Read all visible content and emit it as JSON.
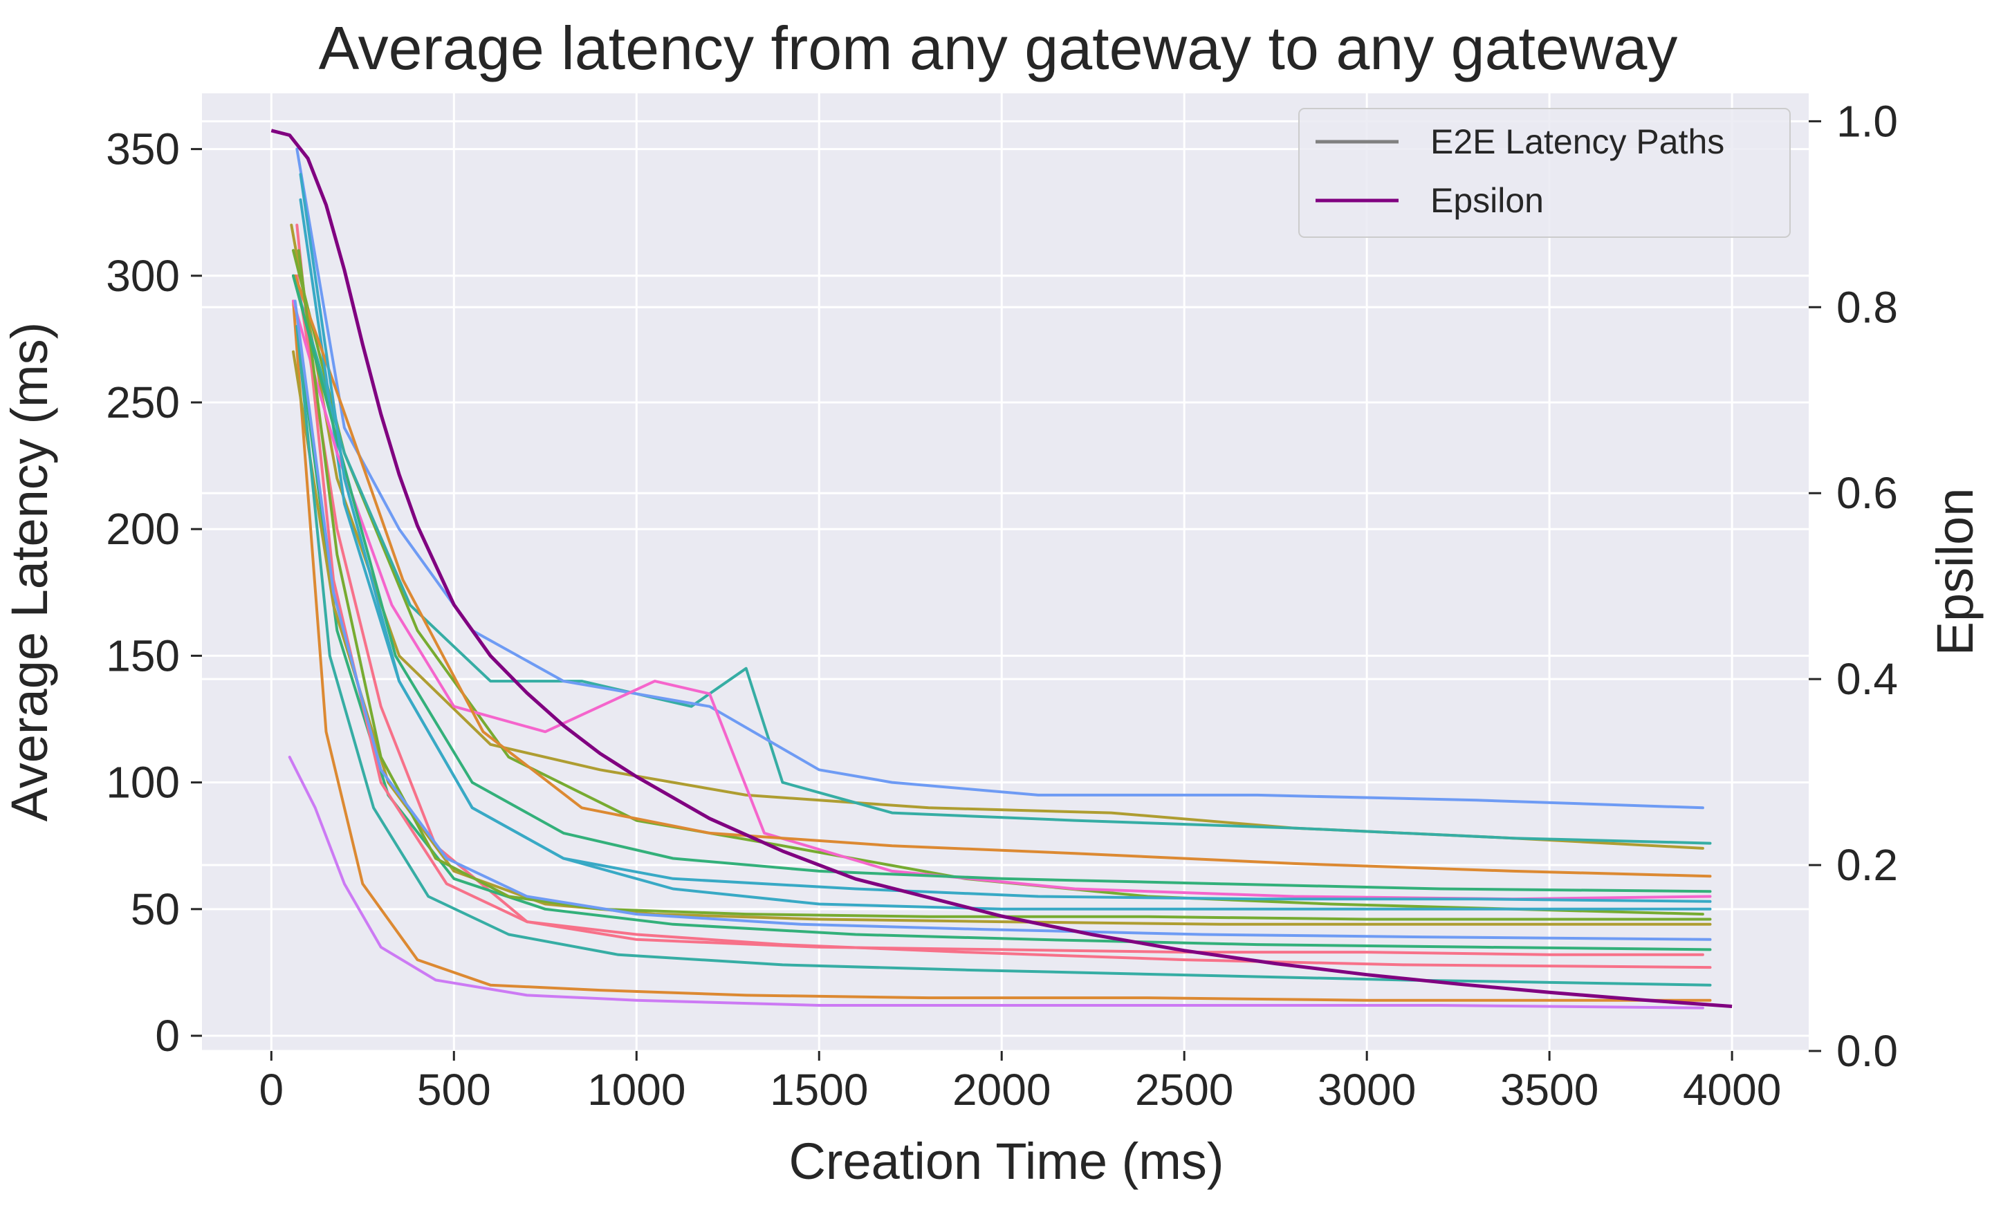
{
  "chart_data": {
    "type": "line",
    "title": "Average latency from any gateway to any gateway",
    "xlabel": "Creation Time (ms)",
    "ylabel": "Average Latency (ms)",
    "y2label": "Epsilon",
    "xlim": [
      -190,
      4210
    ],
    "ylim": [
      -6,
      372
    ],
    "y2lim": [
      0.0,
      1.03
    ],
    "x_ticks": [
      0,
      500,
      1000,
      1500,
      2000,
      2500,
      3000,
      3500,
      4000
    ],
    "y_ticks": [
      0,
      50,
      100,
      150,
      200,
      250,
      300,
      350
    ],
    "y2_ticks": [
      0.0,
      0.2,
      0.4,
      0.6,
      0.8,
      1.0
    ],
    "x_tick_labels": [
      "0",
      "500",
      "1000",
      "1500",
      "2000",
      "2500",
      "3000",
      "3500",
      "4000"
    ],
    "y_tick_labels": [
      "0",
      "50",
      "100",
      "150",
      "200",
      "250",
      "300",
      "350"
    ],
    "y2_tick_labels": [
      "0.0",
      "0.2",
      "0.4",
      "0.6",
      "0.8",
      "1.0"
    ],
    "grid": true,
    "legend": {
      "placement": "top-right",
      "entries": [
        {
          "label": "E2E Latency Paths",
          "color": "#808080"
        },
        {
          "label": "Epsilon",
          "color": "#800080"
        }
      ]
    },
    "colors": {
      "background": "#eaeaf2",
      "grid": "#ffffff",
      "epsilon": "#800080",
      "palette": [
        "#f77189",
        "#dc8932",
        "#ae9d31",
        "#77ab31",
        "#33b07a",
        "#36ada4",
        "#38a9c5",
        "#6e9bf4",
        "#cc7af4",
        "#f565cc"
      ]
    },
    "series": [
      {
        "x": [
          70,
          180,
          300,
          450,
          700,
          1000,
          1500,
          2000,
          2500,
          3000,
          3500,
          3920
        ],
        "values": [
          300,
          200,
          130,
          75,
          45,
          38,
          35,
          34,
          33,
          33,
          32,
          32
        ]
      },
      {
        "x": [
          60,
          150,
          250,
          400,
          600,
          900,
          1300,
          1800,
          2400,
          3000,
          3500,
          3940
        ],
        "values": [
          290,
          120,
          60,
          30,
          20,
          18,
          16,
          15,
          15,
          14,
          14,
          14
        ]
      },
      {
        "x": [
          55,
          180,
          350,
          600,
          900,
          1300,
          1800,
          2300,
          2800,
          3400,
          3920
        ],
        "values": [
          320,
          220,
          150,
          115,
          105,
          95,
          90,
          88,
          82,
          78,
          74
        ]
      },
      {
        "x": [
          60,
          200,
          400,
          650,
          1000,
          1400,
          1900,
          2400,
          2900,
          3400,
          3920
        ],
        "values": [
          310,
          230,
          160,
          110,
          85,
          75,
          62,
          55,
          52,
          50,
          48
        ]
      },
      {
        "x": [
          70,
          180,
          320,
          500,
          750,
          1100,
          1600,
          2100,
          2700,
          3300,
          3940
        ],
        "values": [
          280,
          160,
          95,
          62,
          50,
          44,
          40,
          38,
          36,
          35,
          34
        ]
      },
      {
        "x": [
          60,
          200,
          380,
          600,
          850,
          1150,
          1300,
          1400,
          1700,
          2200,
          2800,
          3400,
          3940
        ],
        "values": [
          300,
          230,
          170,
          140,
          140,
          130,
          145,
          100,
          88,
          85,
          82,
          78,
          76
        ]
      },
      {
        "x": [
          80,
          200,
          350,
          550,
          800,
          1100,
          1500,
          2000,
          2600,
          3200,
          3940
        ],
        "values": [
          330,
          210,
          140,
          90,
          70,
          58,
          52,
          50,
          50,
          50,
          50
        ]
      },
      {
        "x": [
          70,
          200,
          350,
          550,
          800,
          1200,
          1500,
          1700,
          2100,
          2700,
          3300,
          3920
        ],
        "values": [
          350,
          240,
          200,
          160,
          140,
          130,
          105,
          100,
          95,
          95,
          93,
          90
        ]
      },
      {
        "x": [
          50,
          120,
          200,
          300,
          450,
          700,
          1000,
          1500,
          2000,
          2600,
          3200,
          3920
        ],
        "values": [
          110,
          90,
          60,
          35,
          22,
          16,
          14,
          12,
          12,
          12,
          12,
          11
        ]
      },
      {
        "x": [
          60,
          180,
          330,
          500,
          750,
          1050,
          1200,
          1350,
          1700,
          2200,
          2800,
          3400,
          3940
        ],
        "values": [
          290,
          230,
          170,
          130,
          120,
          140,
          135,
          80,
          65,
          58,
          55,
          54,
          55
        ]
      },
      {
        "x": [
          70,
          170,
          300,
          480,
          700,
          1000,
          1400,
          1900,
          2500,
          3100,
          3940
        ],
        "values": [
          320,
          180,
          100,
          60,
          45,
          40,
          36,
          33,
          30,
          28,
          27
        ]
      },
      {
        "x": [
          65,
          190,
          360,
          580,
          850,
          1200,
          1700,
          2200,
          2800,
          3400,
          3940
        ],
        "values": [
          300,
          250,
          180,
          120,
          90,
          80,
          75,
          72,
          68,
          65,
          63
        ]
      },
      {
        "x": [
          60,
          170,
          320,
          500,
          750,
          1050,
          1500,
          2000,
          2600,
          3200,
          3940
        ],
        "values": [
          270,
          170,
          100,
          65,
          52,
          48,
          46,
          45,
          44,
          44,
          44
        ]
      },
      {
        "x": [
          75,
          180,
          300,
          450,
          650,
          900,
          1300,
          1800,
          2400,
          3000,
          3940
        ],
        "values": [
          310,
          190,
          110,
          70,
          55,
          50,
          48,
          47,
          47,
          46,
          46
        ]
      },
      {
        "x": [
          60,
          190,
          340,
          550,
          800,
          1100,
          1500,
          2000,
          2600,
          3200,
          3940
        ],
        "values": [
          300,
          230,
          150,
          100,
          80,
          70,
          65,
          62,
          60,
          58,
          57
        ]
      },
      {
        "x": [
          70,
          160,
          280,
          430,
          650,
          950,
          1400,
          1900,
          2500,
          3100,
          3940
        ],
        "values": [
          280,
          150,
          90,
          55,
          40,
          32,
          28,
          26,
          24,
          22,
          20
        ]
      },
      {
        "x": [
          80,
          200,
          350,
          550,
          800,
          1100,
          1600,
          2100,
          2700,
          3300,
          3940
        ],
        "values": [
          340,
          220,
          140,
          90,
          70,
          62,
          58,
          55,
          54,
          54,
          53
        ]
      },
      {
        "x": [
          65,
          170,
          300,
          480,
          700,
          1000,
          1450,
          1950,
          2550,
          3150,
          3940
        ],
        "values": [
          290,
          175,
          105,
          70,
          55,
          48,
          44,
          42,
          40,
          39,
          38
        ]
      }
    ],
    "epsilon": {
      "name": "Epsilon",
      "x": [
        0,
        50,
        100,
        150,
        200,
        250,
        300,
        350,
        400,
        500,
        600,
        700,
        800,
        900,
        1000,
        1200,
        1400,
        1600,
        1800,
        2000,
        2250,
        2500,
        2750,
        3000,
        3250,
        3500,
        3750,
        4000
      ],
      "values": [
        0.99,
        0.985,
        0.96,
        0.91,
        0.84,
        0.76,
        0.685,
        0.62,
        0.565,
        0.48,
        0.425,
        0.385,
        0.35,
        0.32,
        0.295,
        0.25,
        0.215,
        0.185,
        0.165,
        0.145,
        0.125,
        0.108,
        0.094,
        0.082,
        0.072,
        0.063,
        0.055,
        0.048
      ]
    }
  }
}
